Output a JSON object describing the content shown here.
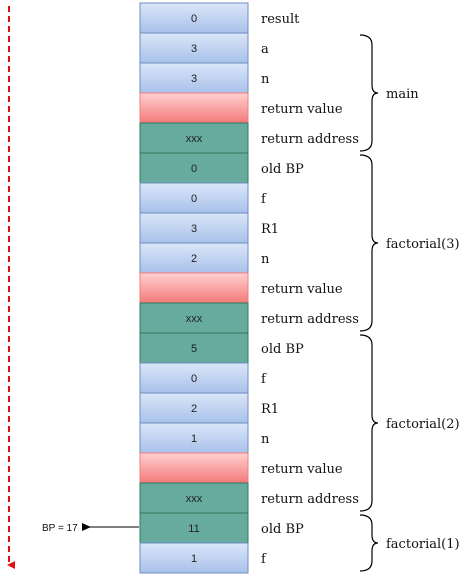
{
  "colors": {
    "blue_top": "#dbe6f8",
    "blue_bottom": "#a8c1ea",
    "blue_stroke": "#6c8ebf",
    "red_top": "#ffd0d0",
    "red_bottom": "#f47a7a",
    "green_fill": "#67ab9f",
    "green_stroke": "#2d7a5e",
    "arrow_red": "#e01010"
  },
  "cells": [
    {
      "value": "0",
      "label": "result",
      "style": "blue"
    },
    {
      "value": "3",
      "label": "a",
      "style": "blue"
    },
    {
      "value": "3",
      "label": "n",
      "style": "blue"
    },
    {
      "value": "",
      "label": "return value",
      "style": "red"
    },
    {
      "value": "xxx",
      "label": "return address",
      "style": "green"
    },
    {
      "value": "0",
      "label": "old BP",
      "style": "green"
    },
    {
      "value": "0",
      "label": "f",
      "style": "blue"
    },
    {
      "value": "3",
      "label": "R1",
      "style": "blue"
    },
    {
      "value": "2",
      "label": "n",
      "style": "blue"
    },
    {
      "value": "",
      "label": "return value",
      "style": "red"
    },
    {
      "value": "xxx",
      "label": "return address",
      "style": "green"
    },
    {
      "value": "5",
      "label": "old BP",
      "style": "green"
    },
    {
      "value": "0",
      "label": "f",
      "style": "blue"
    },
    {
      "value": "2",
      "label": "R1",
      "style": "blue"
    },
    {
      "value": "1",
      "label": "n",
      "style": "blue"
    },
    {
      "value": "",
      "label": "return value",
      "style": "red"
    },
    {
      "value": "xxx",
      "label": "return address",
      "style": "green"
    },
    {
      "value": "11",
      "label": "old BP",
      "style": "green"
    },
    {
      "value": "1",
      "label": "f",
      "style": "blue"
    }
  ],
  "groups": [
    {
      "label": "main",
      "first": 1,
      "last": 4
    },
    {
      "label": "factorial(3)",
      "first": 5,
      "last": 10
    },
    {
      "label": "factorial(2)",
      "first": 11,
      "last": 16
    },
    {
      "label": "factorial(1)",
      "first": 17,
      "last": 18
    }
  ],
  "bp_pointer": {
    "label": "BP = 17",
    "target_cell": 17
  }
}
